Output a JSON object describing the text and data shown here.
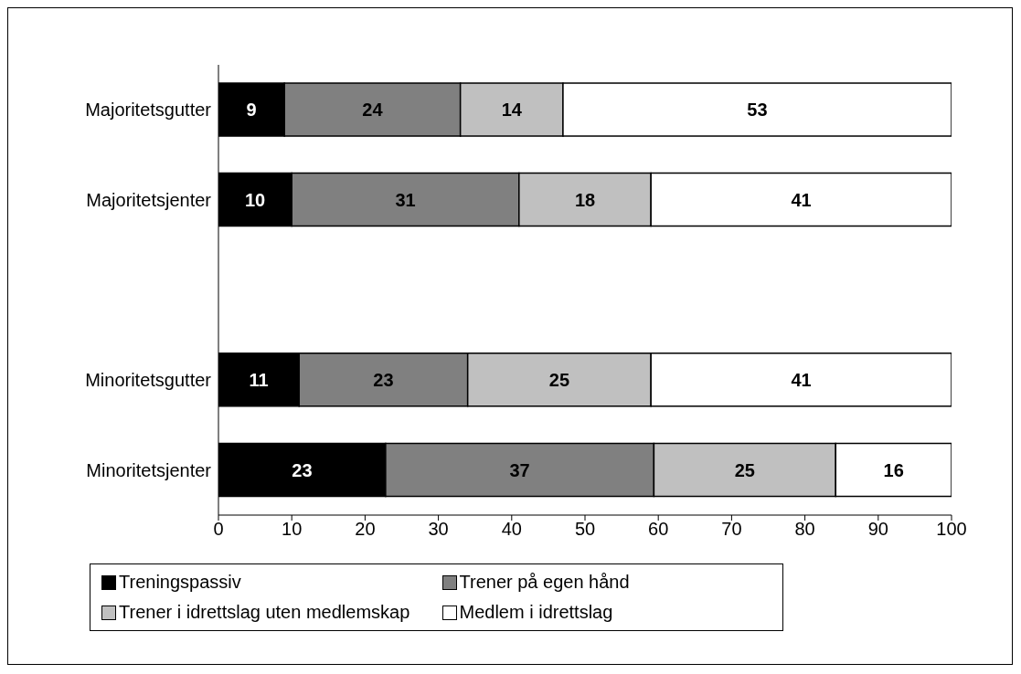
{
  "chart_data": {
    "type": "bar",
    "orientation": "horizontal",
    "stacked": true,
    "categories": [
      "Majoritetsgutter",
      "Majoritetsjenter",
      null,
      "Minoritetsgutter",
      "Minoritetsjenter"
    ],
    "series": [
      {
        "name": "Treningspassiv",
        "color": "#000000",
        "values": [
          9,
          10,
          null,
          11,
          22.8
        ],
        "value_labels": [
          "9",
          "10",
          null,
          "11",
          "23"
        ]
      },
      {
        "name": "Trener på egen hånd",
        "color": "#808080",
        "values": [
          24,
          31,
          null,
          23,
          36.6
        ],
        "value_labels": [
          "24",
          "31",
          null,
          "23",
          "37"
        ]
      },
      {
        "name": "Trener i idrettslag uten medlemskap",
        "color": "#c0c0c0",
        "values": [
          14,
          18,
          null,
          25,
          24.8
        ],
        "value_labels": [
          "14",
          "18",
          null,
          "25",
          "25"
        ]
      },
      {
        "name": "Medlem i idrettslag",
        "color": "#ffffff",
        "values": [
          53,
          41,
          null,
          41,
          15.8
        ],
        "value_labels": [
          "53",
          "41",
          null,
          "41",
          "16"
        ]
      }
    ],
    "xlim": [
      0,
      100
    ],
    "xticks": [
      0,
      10,
      20,
      30,
      40,
      50,
      60,
      70,
      80,
      90,
      100
    ],
    "legend": "bottom"
  }
}
